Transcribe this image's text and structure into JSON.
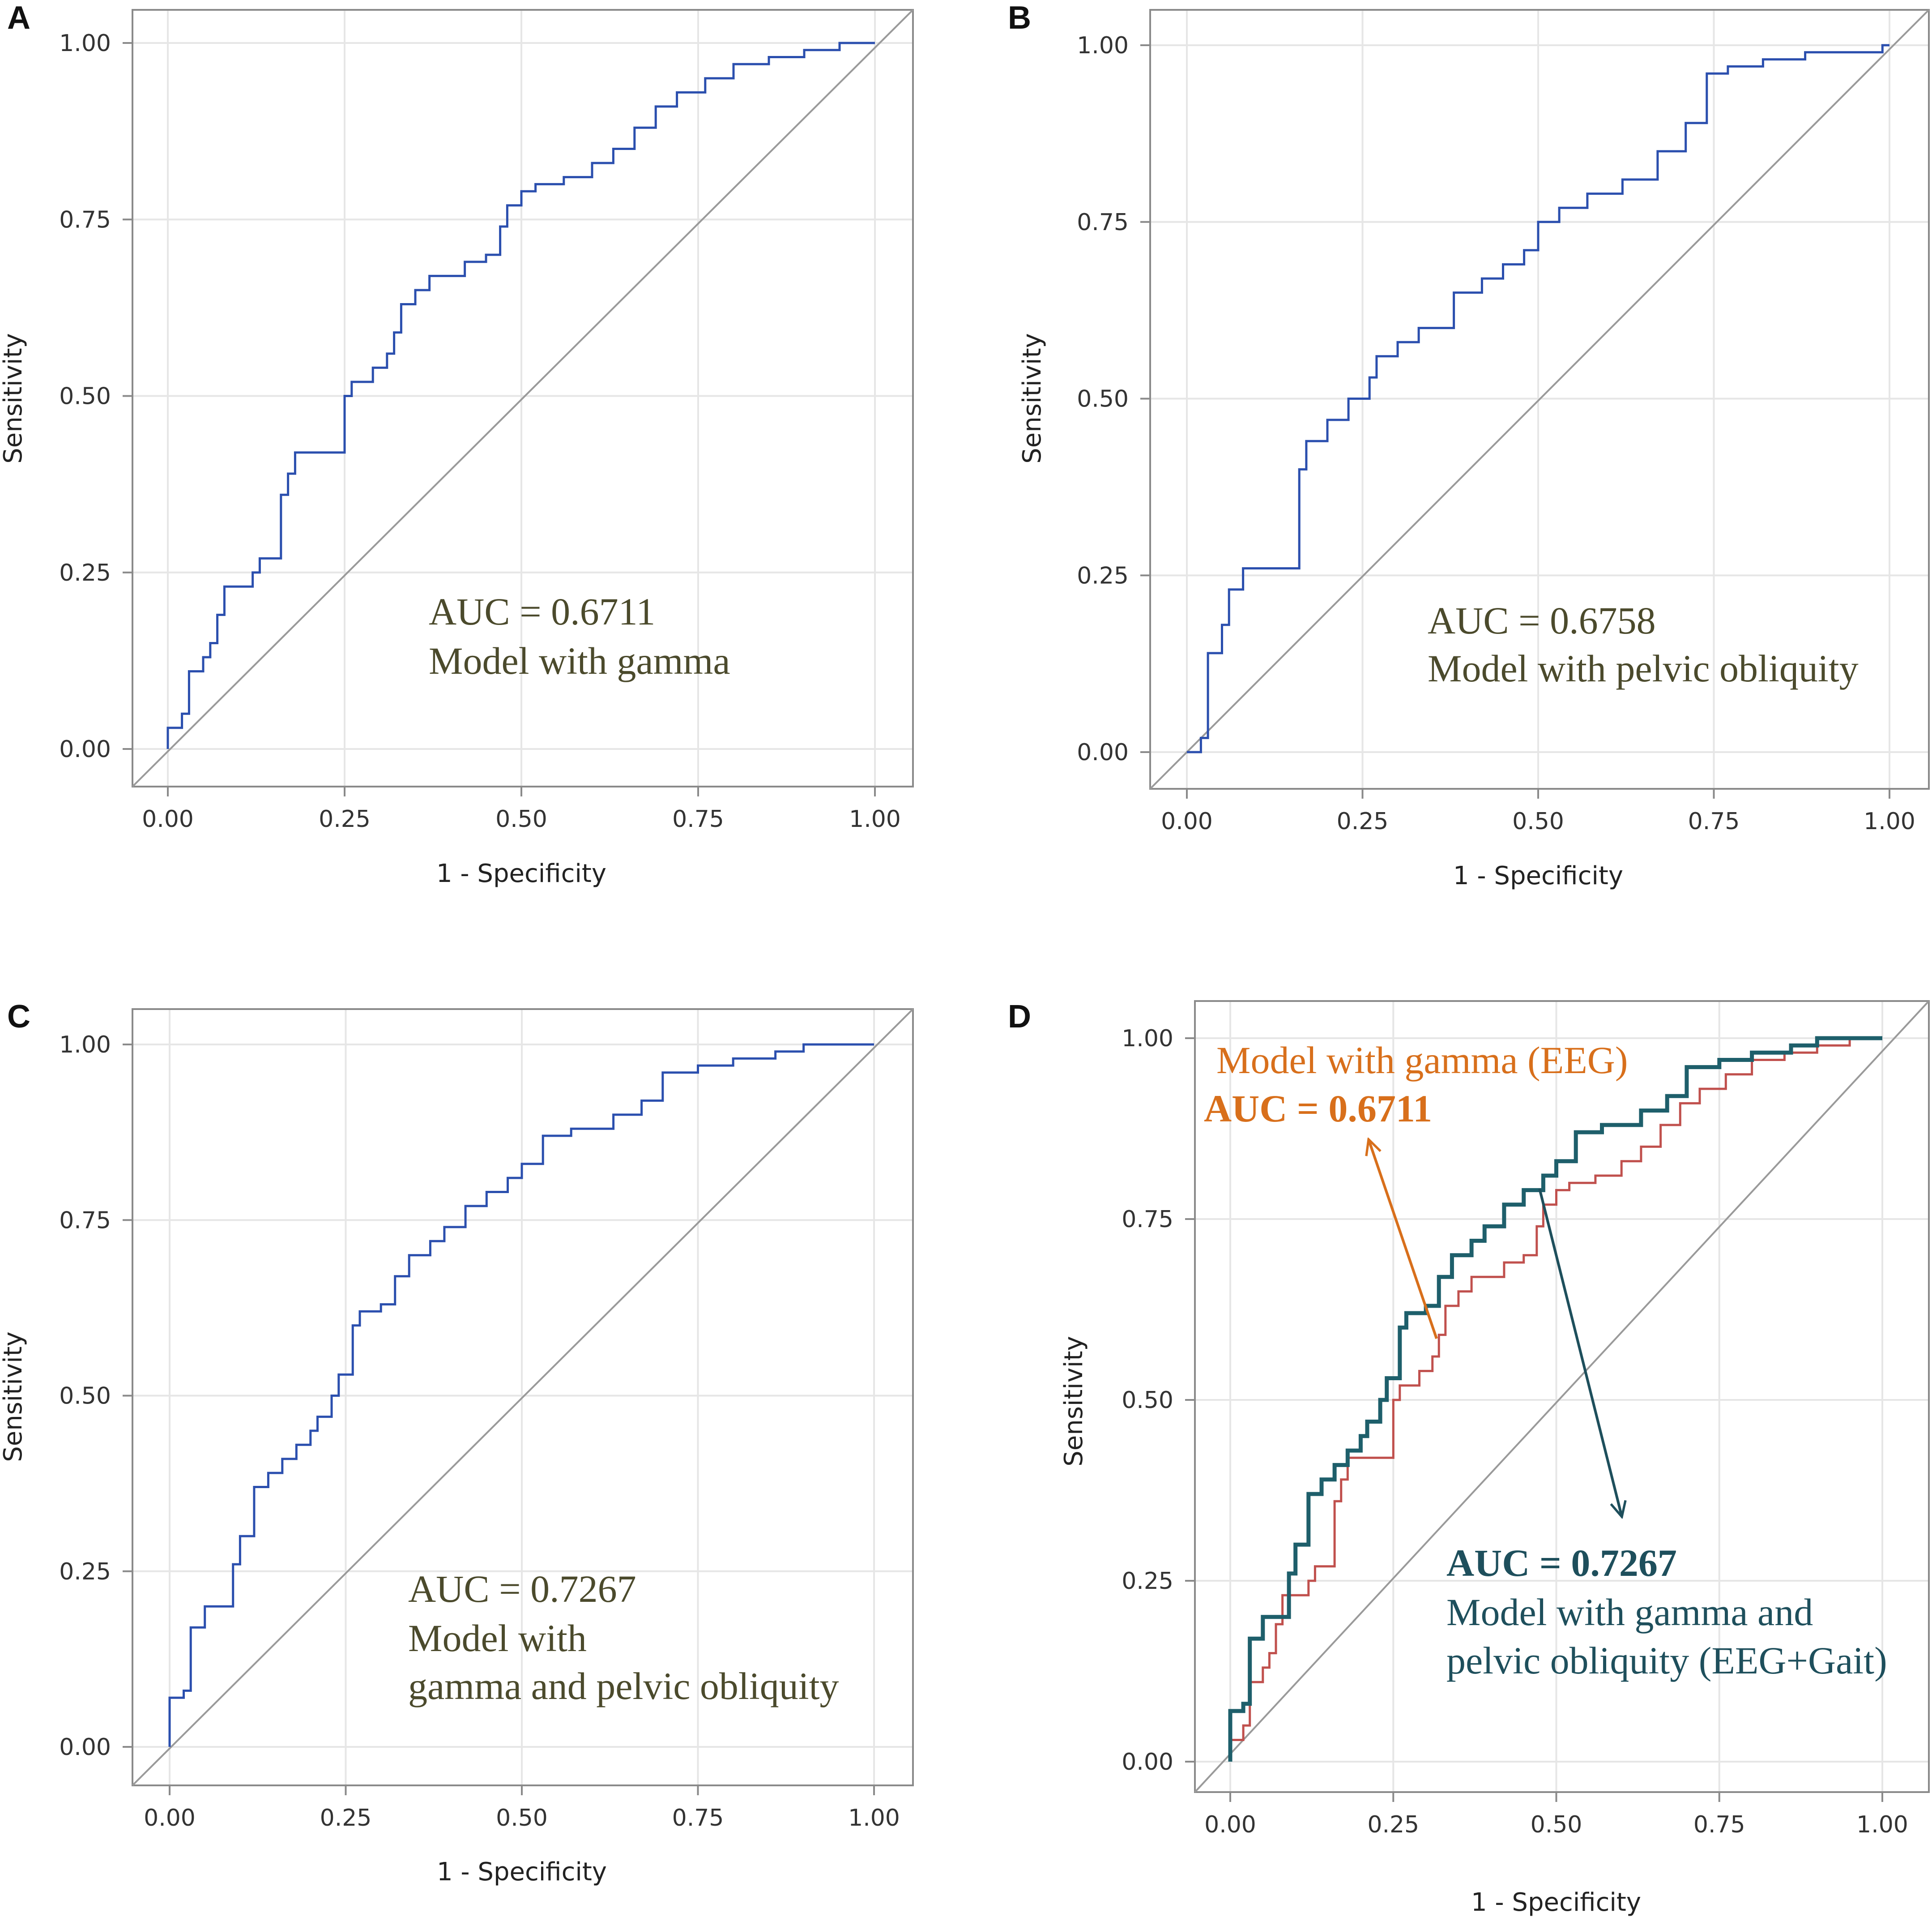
{
  "colors": {
    "roc_blue": "#2b4fae",
    "eeg_red": "#c0504d",
    "combined_teal": "#1e5f6b",
    "annotation_olive": "#4b4a2c",
    "annotation_orange": "#d86f1b",
    "annotation_teal": "#1e4f5c",
    "reference_gray": "#9a9a9a"
  },
  "chart_data": [
    {
      "panel": "A",
      "type": "line",
      "title": "",
      "xlabel": "1 - Specificity",
      "ylabel": "Sensitivity",
      "xlim": [
        0,
        1
      ],
      "ylim": [
        0,
        1
      ],
      "xticks": [
        "0.00",
        "0.25",
        "0.50",
        "0.75",
        "1.00"
      ],
      "yticks": [
        "0.00",
        "0.25",
        "0.50",
        "0.75",
        "1.00"
      ],
      "grid": true,
      "reference_line": "diagonal",
      "series": [
        {
          "name": "Model with gamma",
          "color": "#2b4fae",
          "x": [
            0,
            0,
            0.02,
            0.02,
            0.03,
            0.03,
            0.05,
            0.05,
            0.06,
            0.06,
            0.07,
            0.07,
            0.08,
            0.08,
            0.12,
            0.12,
            0.13,
            0.13,
            0.16,
            0.16,
            0.17,
            0.17,
            0.18,
            0.18,
            0.2,
            0.2,
            0.25,
            0.25,
            0.26,
            0.26,
            0.29,
            0.29,
            0.31,
            0.31,
            0.32,
            0.32,
            0.33,
            0.33,
            0.35,
            0.35,
            0.37,
            0.37,
            0.42,
            0.42,
            0.45,
            0.45,
            0.47,
            0.47,
            0.48,
            0.48,
            0.5,
            0.5,
            0.52,
            0.52,
            0.56,
            0.56,
            0.6,
            0.6,
            0.63,
            0.63,
            0.66,
            0.66,
            0.69,
            0.69,
            0.72,
            0.72,
            0.76,
            0.76,
            0.8,
            0.8,
            0.85,
            0.85,
            0.9,
            0.9,
            0.95,
            0.95,
            1
          ],
          "y": [
            0,
            0.03,
            0.03,
            0.05,
            0.05,
            0.11,
            0.11,
            0.13,
            0.13,
            0.15,
            0.15,
            0.19,
            0.19,
            0.23,
            0.23,
            0.25,
            0.25,
            0.27,
            0.27,
            0.36,
            0.36,
            0.39,
            0.39,
            0.42,
            0.42,
            0.42,
            0.42,
            0.5,
            0.5,
            0.52,
            0.52,
            0.54,
            0.54,
            0.56,
            0.56,
            0.59,
            0.59,
            0.63,
            0.63,
            0.65,
            0.65,
            0.67,
            0.67,
            0.69,
            0.69,
            0.7,
            0.7,
            0.74,
            0.74,
            0.77,
            0.77,
            0.79,
            0.79,
            0.8,
            0.8,
            0.81,
            0.81,
            0.83,
            0.83,
            0.85,
            0.85,
            0.88,
            0.88,
            0.91,
            0.91,
            0.93,
            0.93,
            0.95,
            0.95,
            0.97,
            0.97,
            0.98,
            0.98,
            0.99,
            0.99,
            1,
            1
          ]
        }
      ],
      "annotations": [
        {
          "text": "AUC = 0.6711",
          "bold": false
        },
        {
          "text": "Model with gamma",
          "bold": false
        }
      ]
    },
    {
      "panel": "B",
      "type": "line",
      "title": "",
      "xlabel": "1 - Specificity",
      "ylabel": "Sensitivity",
      "xlim": [
        0,
        1
      ],
      "ylim": [
        0,
        1
      ],
      "xticks": [
        "0.00",
        "0.25",
        "0.50",
        "0.75",
        "1.00"
      ],
      "yticks": [
        "0.00",
        "0.25",
        "0.50",
        "0.75",
        "1.00"
      ],
      "grid": true,
      "reference_line": "diagonal",
      "series": [
        {
          "name": "Model with pelvic obliquity",
          "color": "#2b4fae",
          "x": [
            0,
            0.02,
            0.02,
            0.03,
            0.03,
            0.05,
            0.05,
            0.06,
            0.06,
            0.08,
            0.08,
            0.16,
            0.16,
            0.17,
            0.17,
            0.2,
            0.2,
            0.23,
            0.23,
            0.26,
            0.26,
            0.27,
            0.27,
            0.3,
            0.3,
            0.33,
            0.33,
            0.38,
            0.38,
            0.42,
            0.42,
            0.45,
            0.45,
            0.48,
            0.48,
            0.5,
            0.5,
            0.53,
            0.53,
            0.57,
            0.57,
            0.62,
            0.62,
            0.67,
            0.67,
            0.71,
            0.71,
            0.74,
            0.74,
            0.77,
            0.77,
            0.82,
            0.82,
            0.88,
            0.88,
            0.99,
            0.99,
            1
          ],
          "y": [
            0,
            0,
            0.02,
            0.02,
            0.14,
            0.14,
            0.18,
            0.18,
            0.23,
            0.23,
            0.26,
            0.26,
            0.4,
            0.4,
            0.44,
            0.44,
            0.47,
            0.47,
            0.5,
            0.5,
            0.53,
            0.53,
            0.56,
            0.56,
            0.58,
            0.58,
            0.6,
            0.6,
            0.65,
            0.65,
            0.67,
            0.67,
            0.69,
            0.69,
            0.71,
            0.71,
            0.75,
            0.75,
            0.77,
            0.77,
            0.79,
            0.79,
            0.81,
            0.81,
            0.85,
            0.85,
            0.89,
            0.89,
            0.96,
            0.96,
            0.97,
            0.97,
            0.98,
            0.98,
            0.99,
            0.99,
            1,
            1
          ]
        }
      ],
      "annotations": [
        {
          "text": "AUC = 0.6758",
          "bold": false
        },
        {
          "text": "Model with pelvic obliquity",
          "bold": false
        }
      ]
    },
    {
      "panel": "C",
      "type": "line",
      "title": "",
      "xlabel": "1 - Specificity",
      "ylabel": "Sensitivity",
      "xlim": [
        0,
        1
      ],
      "ylim": [
        0,
        1
      ],
      "xticks": [
        "0.00",
        "0.25",
        "0.50",
        "0.75",
        "1.00"
      ],
      "yticks": [
        "0.00",
        "0.25",
        "0.50",
        "0.75",
        "1.00"
      ],
      "grid": true,
      "reference_line": "diagonal",
      "series": [
        {
          "name": "Model with gamma and pelvic obliquity",
          "color": "#2b4fae",
          "x": [
            0,
            0,
            0.02,
            0.02,
            0.03,
            0.03,
            0.05,
            0.05,
            0.09,
            0.09,
            0.1,
            0.1,
            0.12,
            0.12,
            0.14,
            0.14,
            0.16,
            0.16,
            0.18,
            0.18,
            0.2,
            0.2,
            0.21,
            0.21,
            0.23,
            0.23,
            0.24,
            0.24,
            0.26,
            0.26,
            0.27,
            0.27,
            0.3,
            0.3,
            0.32,
            0.32,
            0.34,
            0.34,
            0.37,
            0.37,
            0.39,
            0.39,
            0.42,
            0.42,
            0.45,
            0.45,
            0.48,
            0.48,
            0.5,
            0.5,
            0.53,
            0.53,
            0.57,
            0.57,
            0.63,
            0.63,
            0.67,
            0.67,
            0.7,
            0.7,
            0.75,
            0.75,
            0.8,
            0.8,
            0.86,
            0.86,
            0.9,
            0.9,
            1
          ],
          "y": [
            0,
            0.07,
            0.07,
            0.08,
            0.08,
            0.17,
            0.17,
            0.2,
            0.2,
            0.26,
            0.26,
            0.3,
            0.3,
            0.37,
            0.37,
            0.39,
            0.39,
            0.41,
            0.41,
            0.43,
            0.43,
            0.45,
            0.45,
            0.47,
            0.47,
            0.5,
            0.5,
            0.53,
            0.53,
            0.6,
            0.6,
            0.62,
            0.62,
            0.63,
            0.63,
            0.67,
            0.67,
            0.7,
            0.7,
            0.72,
            0.72,
            0.74,
            0.74,
            0.77,
            0.77,
            0.79,
            0.79,
            0.81,
            0.81,
            0.83,
            0.83,
            0.87,
            0.87,
            0.88,
            0.88,
            0.9,
            0.9,
            0.92,
            0.92,
            0.96,
            0.96,
            0.97,
            0.97,
            0.98,
            0.98,
            0.99,
            0.99,
            1,
            1
          ]
        }
      ],
      "annotations": [
        {
          "text": "AUC = 0.7267",
          "bold": false
        },
        {
          "text": "Model with",
          "bold": false
        },
        {
          "text": "gamma and pelvic obliquity",
          "bold": false
        }
      ]
    },
    {
      "panel": "D",
      "type": "line",
      "title": "",
      "xlabel": "1 - Specificity",
      "ylabel": "Sensitivity",
      "xlim": [
        0,
        1
      ],
      "ylim": [
        0,
        1
      ],
      "xticks": [
        "0.00",
        "0.25",
        "0.50",
        "0.75",
        "1.00"
      ],
      "yticks": [
        "0.00",
        "0.25",
        "0.50",
        "0.75",
        "1.00"
      ],
      "grid": true,
      "reference_line": "diagonal",
      "series": [
        {
          "name": "Model with gamma (EEG)",
          "color": "#c0504d",
          "x": [
            0,
            0,
            0.02,
            0.02,
            0.03,
            0.03,
            0.05,
            0.05,
            0.06,
            0.06,
            0.07,
            0.07,
            0.08,
            0.08,
            0.12,
            0.12,
            0.13,
            0.13,
            0.16,
            0.16,
            0.17,
            0.17,
            0.18,
            0.18,
            0.2,
            0.2,
            0.25,
            0.25,
            0.26,
            0.26,
            0.29,
            0.29,
            0.31,
            0.31,
            0.32,
            0.32,
            0.33,
            0.33,
            0.35,
            0.35,
            0.37,
            0.37,
            0.42,
            0.42,
            0.45,
            0.45,
            0.47,
            0.47,
            0.48,
            0.48,
            0.5,
            0.5,
            0.52,
            0.52,
            0.56,
            0.56,
            0.6,
            0.6,
            0.63,
            0.63,
            0.66,
            0.66,
            0.69,
            0.69,
            0.72,
            0.72,
            0.76,
            0.76,
            0.8,
            0.8,
            0.85,
            0.85,
            0.9,
            0.9,
            0.95,
            0.95,
            1
          ],
          "y": [
            0,
            0.03,
            0.03,
            0.05,
            0.05,
            0.11,
            0.11,
            0.13,
            0.13,
            0.15,
            0.15,
            0.19,
            0.19,
            0.23,
            0.23,
            0.25,
            0.25,
            0.27,
            0.27,
            0.36,
            0.36,
            0.39,
            0.39,
            0.42,
            0.42,
            0.42,
            0.42,
            0.5,
            0.5,
            0.52,
            0.52,
            0.54,
            0.54,
            0.56,
            0.56,
            0.59,
            0.59,
            0.63,
            0.63,
            0.65,
            0.65,
            0.67,
            0.67,
            0.69,
            0.69,
            0.7,
            0.7,
            0.74,
            0.74,
            0.77,
            0.77,
            0.79,
            0.79,
            0.8,
            0.8,
            0.81,
            0.81,
            0.83,
            0.83,
            0.85,
            0.85,
            0.88,
            0.88,
            0.91,
            0.91,
            0.93,
            0.93,
            0.95,
            0.95,
            0.97,
            0.97,
            0.98,
            0.98,
            0.99,
            0.99,
            1,
            1
          ]
        },
        {
          "name": "Model with gamma and pelvic obliquity (EEG+Gait)",
          "color": "#1e5f6b",
          "x": [
            0,
            0,
            0.02,
            0.02,
            0.03,
            0.03,
            0.05,
            0.05,
            0.09,
            0.09,
            0.1,
            0.1,
            0.12,
            0.12,
            0.14,
            0.14,
            0.16,
            0.16,
            0.18,
            0.18,
            0.2,
            0.2,
            0.21,
            0.21,
            0.23,
            0.23,
            0.24,
            0.24,
            0.26,
            0.26,
            0.27,
            0.27,
            0.3,
            0.3,
            0.32,
            0.32,
            0.34,
            0.34,
            0.37,
            0.37,
            0.39,
            0.39,
            0.42,
            0.42,
            0.45,
            0.45,
            0.48,
            0.48,
            0.5,
            0.5,
            0.53,
            0.53,
            0.57,
            0.57,
            0.63,
            0.63,
            0.67,
            0.67,
            0.7,
            0.7,
            0.75,
            0.75,
            0.8,
            0.8,
            0.86,
            0.86,
            0.9,
            0.9,
            1
          ],
          "y": [
            0,
            0.07,
            0.07,
            0.08,
            0.08,
            0.17,
            0.17,
            0.2,
            0.2,
            0.26,
            0.26,
            0.3,
            0.3,
            0.37,
            0.37,
            0.39,
            0.39,
            0.41,
            0.41,
            0.43,
            0.43,
            0.45,
            0.45,
            0.47,
            0.47,
            0.5,
            0.5,
            0.53,
            0.53,
            0.6,
            0.6,
            0.62,
            0.62,
            0.63,
            0.63,
            0.67,
            0.67,
            0.7,
            0.7,
            0.72,
            0.72,
            0.74,
            0.74,
            0.77,
            0.77,
            0.79,
            0.79,
            0.81,
            0.81,
            0.83,
            0.83,
            0.87,
            0.87,
            0.88,
            0.88,
            0.9,
            0.9,
            0.92,
            0.92,
            0.96,
            0.96,
            0.97,
            0.97,
            0.98,
            0.98,
            0.99,
            0.99,
            1,
            1
          ]
        }
      ],
      "annotations": [
        {
          "text": "Model with gamma (EEG)",
          "bold": false,
          "color": "#d86f1b"
        },
        {
          "text": "AUC = 0.6711",
          "bold": true,
          "color": "#d86f1b"
        },
        {
          "text": "AUC = 0.7267",
          "bold": true,
          "color": "#1e4f5c"
        },
        {
          "text": "Model with gamma and",
          "bold": false,
          "color": "#1e4f5c"
        },
        {
          "text": "pelvic obliquity (EEG+Gait)",
          "bold": false,
          "color": "#1e4f5c"
        }
      ]
    }
  ]
}
